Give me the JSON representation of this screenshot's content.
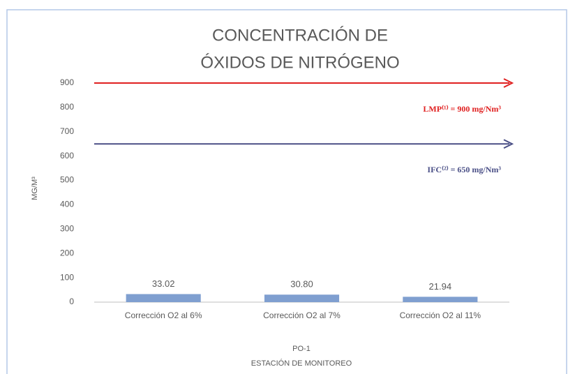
{
  "chart_data": {
    "type": "bar",
    "title": [
      "CONCENTRACIÓN DE",
      "ÓXIDOS DE NITRÓGENO"
    ],
    "categories": [
      "Corrección O2 al 6%",
      "Corrección O2 al 7%",
      "Corrección O2 al 11%"
    ],
    "values": [
      33.02,
      30.8,
      21.94
    ],
    "value_labels": [
      "33.02",
      "30.80",
      "21.94"
    ],
    "color": "#7f9fd0",
    "ylim": [
      0,
      900
    ],
    "yticks": [
      0,
      100,
      200,
      300,
      400,
      500,
      600,
      700,
      800,
      900
    ],
    "ylabel": "MG/M³",
    "xlabel": [
      "PO-1",
      "ESTACIÓN DE MONITOREO"
    ],
    "reference_lines": [
      {
        "value": 900,
        "label": "LMP⁽¹⁾ = 900 mg/Nm³",
        "color": "#e02020"
      },
      {
        "value": 650,
        "label": "IFC⁽²⁾ = 650 mg/Nm³",
        "color": "#4a4f86"
      }
    ]
  }
}
